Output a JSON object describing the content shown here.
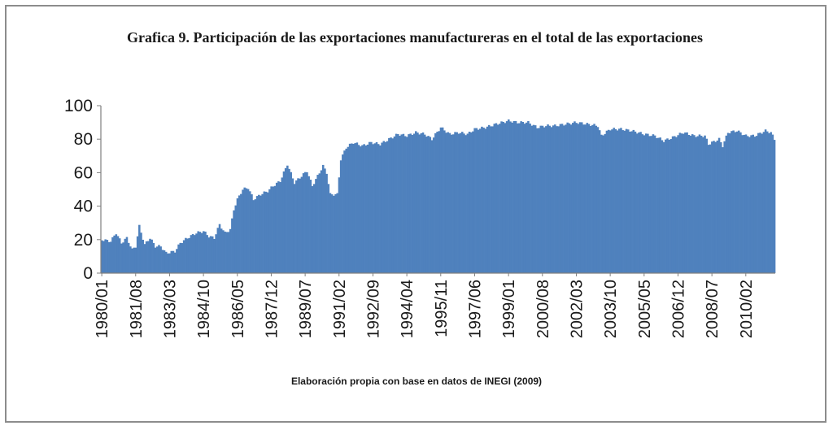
{
  "chart_data": {
    "type": "bar",
    "title": "Grafica 9. Participación de las exportaciones manufactureras en el total de las exportaciones",
    "xlabel": "Elaboración propia con base en datos de INEGI  (2009)",
    "ylabel": "",
    "ylim": [
      0,
      100
    ],
    "yticks": [
      "0",
      "20",
      "40",
      "60",
      "80",
      "100"
    ],
    "grid": false,
    "legend": "none",
    "bar_color": "#4F81BD",
    "start": "1980/01",
    "end": "2011/06",
    "xtick_labels": [
      "1980/01",
      "1981/08",
      "1983/03",
      "1984/10",
      "1986/05",
      "1987/12",
      "1989/07",
      "1991/02",
      "1992/09",
      "1994/04",
      "1995/11",
      "1997/06",
      "1999/01",
      "2000/08",
      "2002/03",
      "2003/10",
      "2005/05",
      "2006/12",
      "2008/07",
      "2010/02"
    ],
    "anchors": [
      [
        "1980/01",
        20
      ],
      [
        "1980/06",
        19
      ],
      [
        "1980/09",
        24
      ],
      [
        "1980/12",
        18
      ],
      [
        "1981/03",
        21
      ],
      [
        "1981/06",
        14
      ],
      [
        "1981/08",
        16
      ],
      [
        "1981/10",
        28
      ],
      [
        "1982/01",
        17
      ],
      [
        "1982/04",
        21
      ],
      [
        "1982/07",
        16
      ],
      [
        "1982/10",
        16
      ],
      [
        "1983/01",
        12
      ],
      [
        "1983/06",
        13
      ],
      [
        "1983/09",
        18
      ],
      [
        "1984/01",
        21
      ],
      [
        "1984/06",
        24
      ],
      [
        "1984/10",
        25
      ],
      [
        "1985/01",
        22
      ],
      [
        "1985/04",
        21
      ],
      [
        "1985/07",
        29
      ],
      [
        "1985/10",
        24
      ],
      [
        "1986/01",
        26
      ],
      [
        "1986/03",
        38
      ],
      [
        "1986/05",
        44
      ],
      [
        "1986/08",
        50
      ],
      [
        "1986/11",
        51
      ],
      [
        "1987/02",
        44
      ],
      [
        "1987/06",
        47
      ],
      [
        "1987/10",
        49
      ],
      [
        "1988/01",
        52
      ],
      [
        "1988/05",
        55
      ],
      [
        "1988/09",
        65
      ],
      [
        "1989/01",
        54
      ],
      [
        "1989/05",
        58
      ],
      [
        "1989/08",
        61
      ],
      [
        "1989/11",
        52
      ],
      [
        "1990/02",
        58
      ],
      [
        "1990/05",
        64
      ],
      [
        "1990/07",
        60
      ],
      [
        "1990/09",
        47
      ],
      [
        "1991/01",
        47
      ],
      [
        "1991/03",
        68
      ],
      [
        "1991/06",
        75
      ],
      [
        "1991/10",
        78
      ],
      [
        "1992/03",
        76
      ],
      [
        "1992/08",
        78
      ],
      [
        "1993/01",
        77
      ],
      [
        "1993/06",
        80
      ],
      [
        "1993/11",
        83
      ],
      [
        "1994/04",
        82
      ],
      [
        "1994/09",
        84
      ],
      [
        "1995/02",
        83
      ],
      [
        "1995/06",
        80
      ],
      [
        "1995/11",
        87
      ],
      [
        "1996/04",
        83
      ],
      [
        "1996/09",
        84
      ],
      [
        "1997/02",
        83
      ],
      [
        "1997/06",
        86
      ],
      [
        "1997/12",
        87
      ],
      [
        "1998/06",
        89
      ],
      [
        "1999/01",
        91
      ],
      [
        "1999/06",
        90
      ],
      [
        "1999/12",
        90
      ],
      [
        "2000/05",
        87
      ],
      [
        "2000/10",
        88
      ],
      [
        "2001/03",
        88
      ],
      [
        "2001/09",
        89
      ],
      [
        "2002/03",
        90
      ],
      [
        "2002/09",
        89
      ],
      [
        "2003/03",
        88
      ],
      [
        "2003/05",
        82
      ],
      [
        "2003/10",
        86
      ],
      [
        "2004/04",
        86
      ],
      [
        "2004/10",
        85
      ],
      [
        "2005/05",
        83
      ],
      [
        "2005/11",
        82
      ],
      [
        "2006/04",
        79
      ],
      [
        "2006/09",
        81
      ],
      [
        "2007/03",
        84
      ],
      [
        "2007/09",
        82
      ],
      [
        "2008/03",
        82
      ],
      [
        "2008/05",
        77
      ],
      [
        "2008/11",
        80
      ],
      [
        "2009/01",
        76
      ],
      [
        "2009/04",
        84
      ],
      [
        "2009/09",
        85
      ],
      [
        "2010/02",
        82
      ],
      [
        "2010/07",
        82
      ],
      [
        "2011/01",
        85
      ],
      [
        "2011/04",
        84
      ],
      [
        "2011/06",
        80
      ]
    ]
  },
  "colors": {
    "bar": "#4F81BD",
    "bar_edge": "#3E6FA8",
    "axis": "#7f7f7f",
    "frame": "#8c8c8c"
  }
}
